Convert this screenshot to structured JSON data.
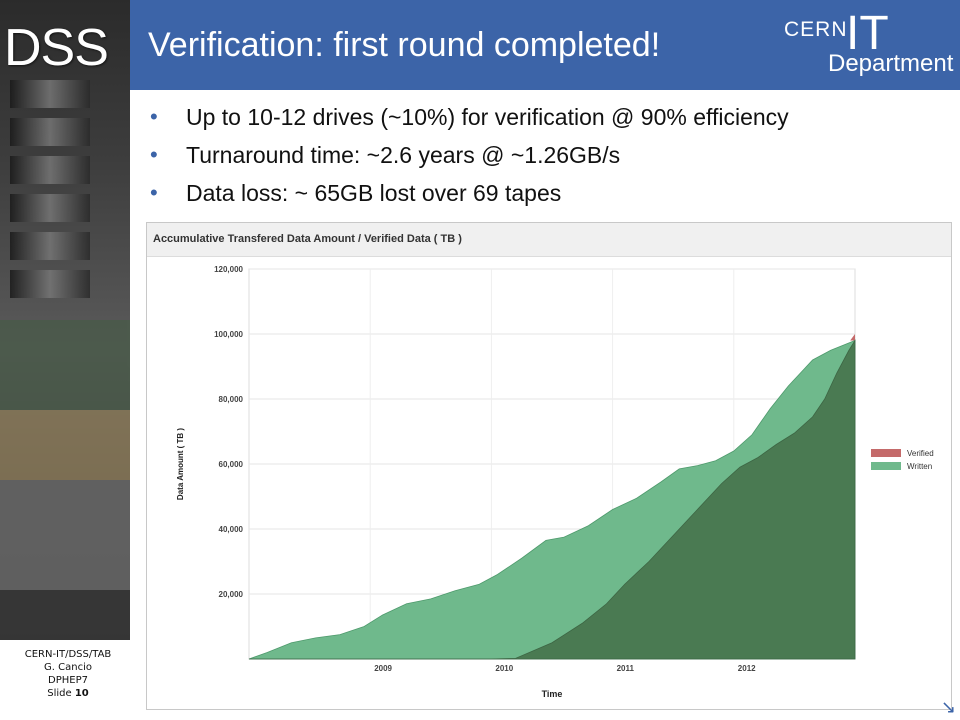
{
  "sidebar": {
    "logo_text": "DSS"
  },
  "header": {
    "title": "Verification: first round completed!",
    "logo": {
      "top": "CERN",
      "big": "IT",
      "bottom": "Department"
    }
  },
  "bullets": [
    "Up to 10-12 drives (~10%) for verification @ 90% efficiency",
    "Turnaround time: ~2.6 years @ ~1.26GB/s",
    "Data loss: ~ 65GB lost over 69 tapes"
  ],
  "footer": {
    "line1": "CERN-IT/DSS/TAB",
    "line2": "G. Cancio",
    "line3": "DPHEP7",
    "slide_label": "Slide",
    "slide_number": "10"
  },
  "chart_data": {
    "type": "area",
    "title": "Accumulative Transfered Data Amount / Verified Data ( TB )",
    "xlabel": "Time",
    "ylabel": "Data Amount ( TB )",
    "ylim": [
      0,
      120000
    ],
    "yticks": [
      20000,
      40000,
      60000,
      80000,
      100000,
      120000
    ],
    "ytick_labels": [
      "20,000",
      "40,000",
      "60,000",
      "80,000",
      "100,000",
      "120,000"
    ],
    "xlim": [
      2008.0,
      2013.0
    ],
    "xticks": [
      2009,
      2010,
      2011,
      2012
    ],
    "xtick_labels": [
      "2009",
      "2010",
      "2011",
      "2012"
    ],
    "legend_position": "right",
    "series": [
      {
        "name": "Verified",
        "color": "#c46a6a",
        "points": [
          [
            2008.0,
            0
          ],
          [
            2010.0,
            0
          ],
          [
            2010.2,
            200
          ],
          [
            2010.5,
            5000
          ],
          [
            2010.75,
            11000
          ],
          [
            2010.95,
            17000
          ],
          [
            2011.1,
            23000
          ],
          [
            2011.3,
            30000
          ],
          [
            2011.5,
            38000
          ],
          [
            2011.7,
            46000
          ],
          [
            2011.9,
            54000
          ],
          [
            2012.05,
            59000
          ],
          [
            2012.2,
            62000
          ],
          [
            2012.35,
            66000
          ],
          [
            2012.5,
            69500
          ],
          [
            2012.65,
            74500
          ],
          [
            2012.75,
            80000
          ],
          [
            2012.85,
            88000
          ],
          [
            2012.95,
            95000
          ],
          [
            2013.0,
            98000
          ]
        ]
      },
      {
        "name": "Written",
        "color": "#6fb98c",
        "points": [
          [
            2008.0,
            0
          ],
          [
            2008.15,
            2000
          ],
          [
            2008.35,
            5000
          ],
          [
            2008.55,
            6500
          ],
          [
            2008.75,
            7500
          ],
          [
            2008.95,
            10000
          ],
          [
            2009.1,
            13500
          ],
          [
            2009.3,
            17000
          ],
          [
            2009.5,
            18500
          ],
          [
            2009.7,
            21000
          ],
          [
            2009.9,
            23000
          ],
          [
            2010.05,
            26000
          ],
          [
            2010.25,
            31000
          ],
          [
            2010.45,
            36500
          ],
          [
            2010.6,
            37500
          ],
          [
            2010.8,
            41000
          ],
          [
            2011.0,
            46000
          ],
          [
            2011.2,
            49500
          ],
          [
            2011.4,
            54500
          ],
          [
            2011.55,
            58500
          ],
          [
            2011.7,
            59500
          ],
          [
            2011.85,
            61000
          ],
          [
            2012.0,
            64000
          ],
          [
            2012.15,
            69000
          ],
          [
            2012.3,
            77000
          ],
          [
            2012.45,
            84000
          ],
          [
            2012.55,
            88000
          ],
          [
            2012.65,
            92000
          ],
          [
            2012.8,
            95000
          ],
          [
            2012.9,
            96500
          ],
          [
            2013.0,
            98000
          ]
        ]
      }
    ],
    "final_value": 100000
  }
}
